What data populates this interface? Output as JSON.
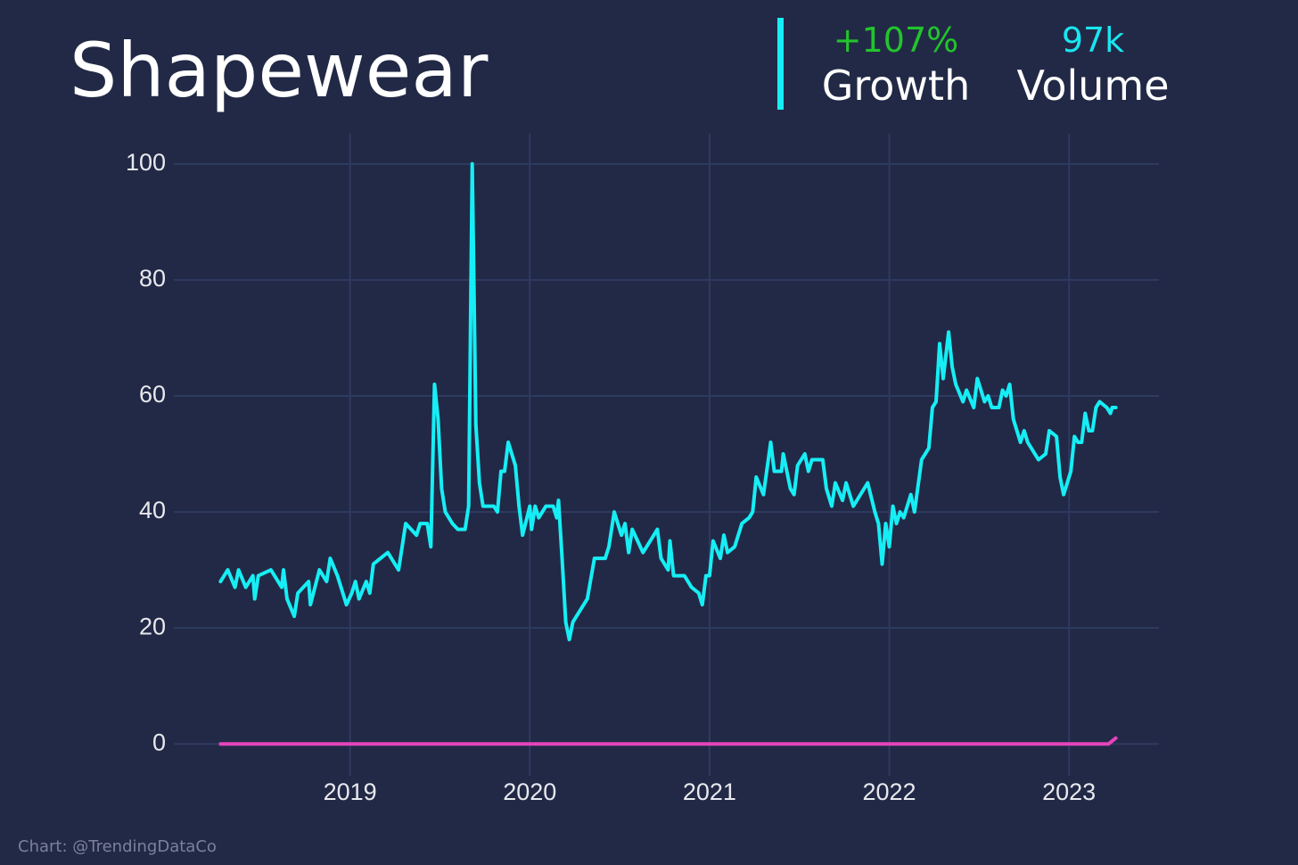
{
  "chart_data": {
    "type": "line",
    "title": "Shapewear",
    "stats": [
      {
        "value": "+107%",
        "label": "Growth",
        "color": "#22c42c"
      },
      {
        "value": "97k",
        "label": "Volume",
        "color": "#18e6f0"
      }
    ],
    "source": "Chart: @TrendingDataCo",
    "xlim": [
      2018.02,
      2023.5
    ],
    "xticks": [
      2019,
      2020,
      2021,
      2022,
      2023
    ],
    "ylim": [
      -5.5,
      105.2
    ],
    "yticks": [
      0,
      20,
      40,
      60,
      80,
      100
    ],
    "grid": true,
    "series": [
      {
        "color": "#16eef5",
        "x": [
          2018.28,
          2018.32,
          2018.36,
          2018.38,
          2018.42,
          2018.46,
          2018.47,
          2018.49,
          2018.56,
          2018.62,
          2018.63,
          2018.65,
          2018.69,
          2018.71,
          2018.77,
          2018.78,
          2018.83,
          2018.87,
          2018.89,
          2018.93,
          2018.98,
          2019.01,
          2019.03,
          2019.05,
          2019.09,
          2019.11,
          2019.13,
          2019.17,
          2019.21,
          2019.27,
          2019.31,
          2019.37,
          2019.39,
          2019.43,
          2019.45,
          2019.47,
          2019.49,
          2019.51,
          2019.53,
          2019.57,
          2019.6,
          2019.64,
          2019.66,
          2019.68,
          2019.7,
          2019.72,
          2019.74,
          2019.8,
          2019.82,
          2019.84,
          2019.86,
          2019.88,
          2019.92,
          2019.94,
          2019.96,
          2020.0,
          2020.01,
          2020.03,
          2020.05,
          2020.09,
          2020.13,
          2020.15,
          2020.16,
          2020.18,
          2020.2,
          2020.22,
          2020.24,
          2020.28,
          2020.32,
          2020.36,
          2020.42,
          2020.44,
          2020.47,
          2020.51,
          2020.53,
          2020.55,
          2020.57,
          2020.63,
          2020.67,
          2020.71,
          2020.73,
          2020.77,
          2020.78,
          2020.8,
          2020.86,
          2020.9,
          2020.94,
          2020.96,
          2020.98,
          2021.0,
          2021.02,
          2021.06,
          2021.08,
          2021.1,
          2021.14,
          2021.18,
          2021.22,
          2021.24,
          2021.26,
          2021.3,
          2021.34,
          2021.36,
          2021.4,
          2021.41,
          2021.45,
          2021.47,
          2021.49,
          2021.53,
          2021.55,
          2021.57,
          2021.63,
          2021.65,
          2021.68,
          2021.7,
          2021.74,
          2021.76,
          2021.8,
          2021.88,
          2021.92,
          2021.94,
          2021.96,
          2021.98,
          2022.0,
          2022.02,
          2022.04,
          2022.06,
          2022.08,
          2022.12,
          2022.14,
          2022.18,
          2022.22,
          2022.24,
          2022.26,
          2022.28,
          2022.3,
          2022.33,
          2022.35,
          2022.37,
          2022.41,
          2022.43,
          2022.47,
          2022.49,
          2022.53,
          2022.55,
          2022.57,
          2022.61,
          2022.63,
          2022.65,
          2022.67,
          2022.69,
          2022.73,
          2022.75,
          2022.77,
          2022.83,
          2022.87,
          2022.89,
          2022.93,
          2022.95,
          2022.97,
          2023.01,
          2023.03,
          2023.05,
          2023.07,
          2023.09,
          2023.11,
          2023.13,
          2023.15,
          2023.17,
          2023.21,
          2023.23,
          2023.24,
          2023.26
        ],
        "values": [
          28,
          30,
          27,
          30,
          27,
          29,
          25,
          29,
          30,
          27,
          30,
          25,
          22,
          26,
          28,
          24,
          30,
          28,
          32,
          29,
          24,
          26,
          28,
          25,
          28,
          26,
          31,
          32,
          33,
          30,
          38,
          36,
          38,
          38,
          34,
          62,
          56,
          44,
          40,
          38,
          37,
          37,
          41,
          100,
          55,
          45,
          41,
          41,
          40,
          47,
          47,
          52,
          48,
          41,
          36,
          41,
          37,
          41,
          39,
          41,
          41,
          39,
          42,
          32,
          21,
          18,
          21,
          23,
          25,
          32,
          32,
          34,
          40,
          36,
          38,
          33,
          37,
          33,
          35,
          37,
          32,
          30,
          35,
          29,
          29,
          27,
          26,
          24,
          29,
          29,
          35,
          32,
          36,
          33,
          34,
          38,
          39,
          40,
          46,
          43,
          52,
          47,
          47,
          50,
          44,
          43,
          48,
          50,
          47,
          49,
          49,
          44,
          41,
          45,
          42,
          45,
          41,
          45,
          40,
          38,
          31,
          38,
          34,
          41,
          38,
          40,
          39,
          43,
          40,
          49,
          51,
          58,
          59,
          69,
          63,
          71,
          65,
          62,
          59,
          61,
          58,
          63,
          59,
          60,
          58,
          58,
          61,
          60,
          62,
          56,
          52,
          54,
          52,
          49,
          50,
          54,
          53,
          46,
          43,
          47,
          53,
          52,
          52,
          57,
          54,
          54,
          58,
          59,
          58,
          57,
          58,
          58
        ]
      },
      {
        "color": "#e544bb",
        "x": [
          2018.28,
          2023.22,
          2023.26
        ],
        "values": [
          0,
          0,
          1
        ]
      }
    ]
  }
}
